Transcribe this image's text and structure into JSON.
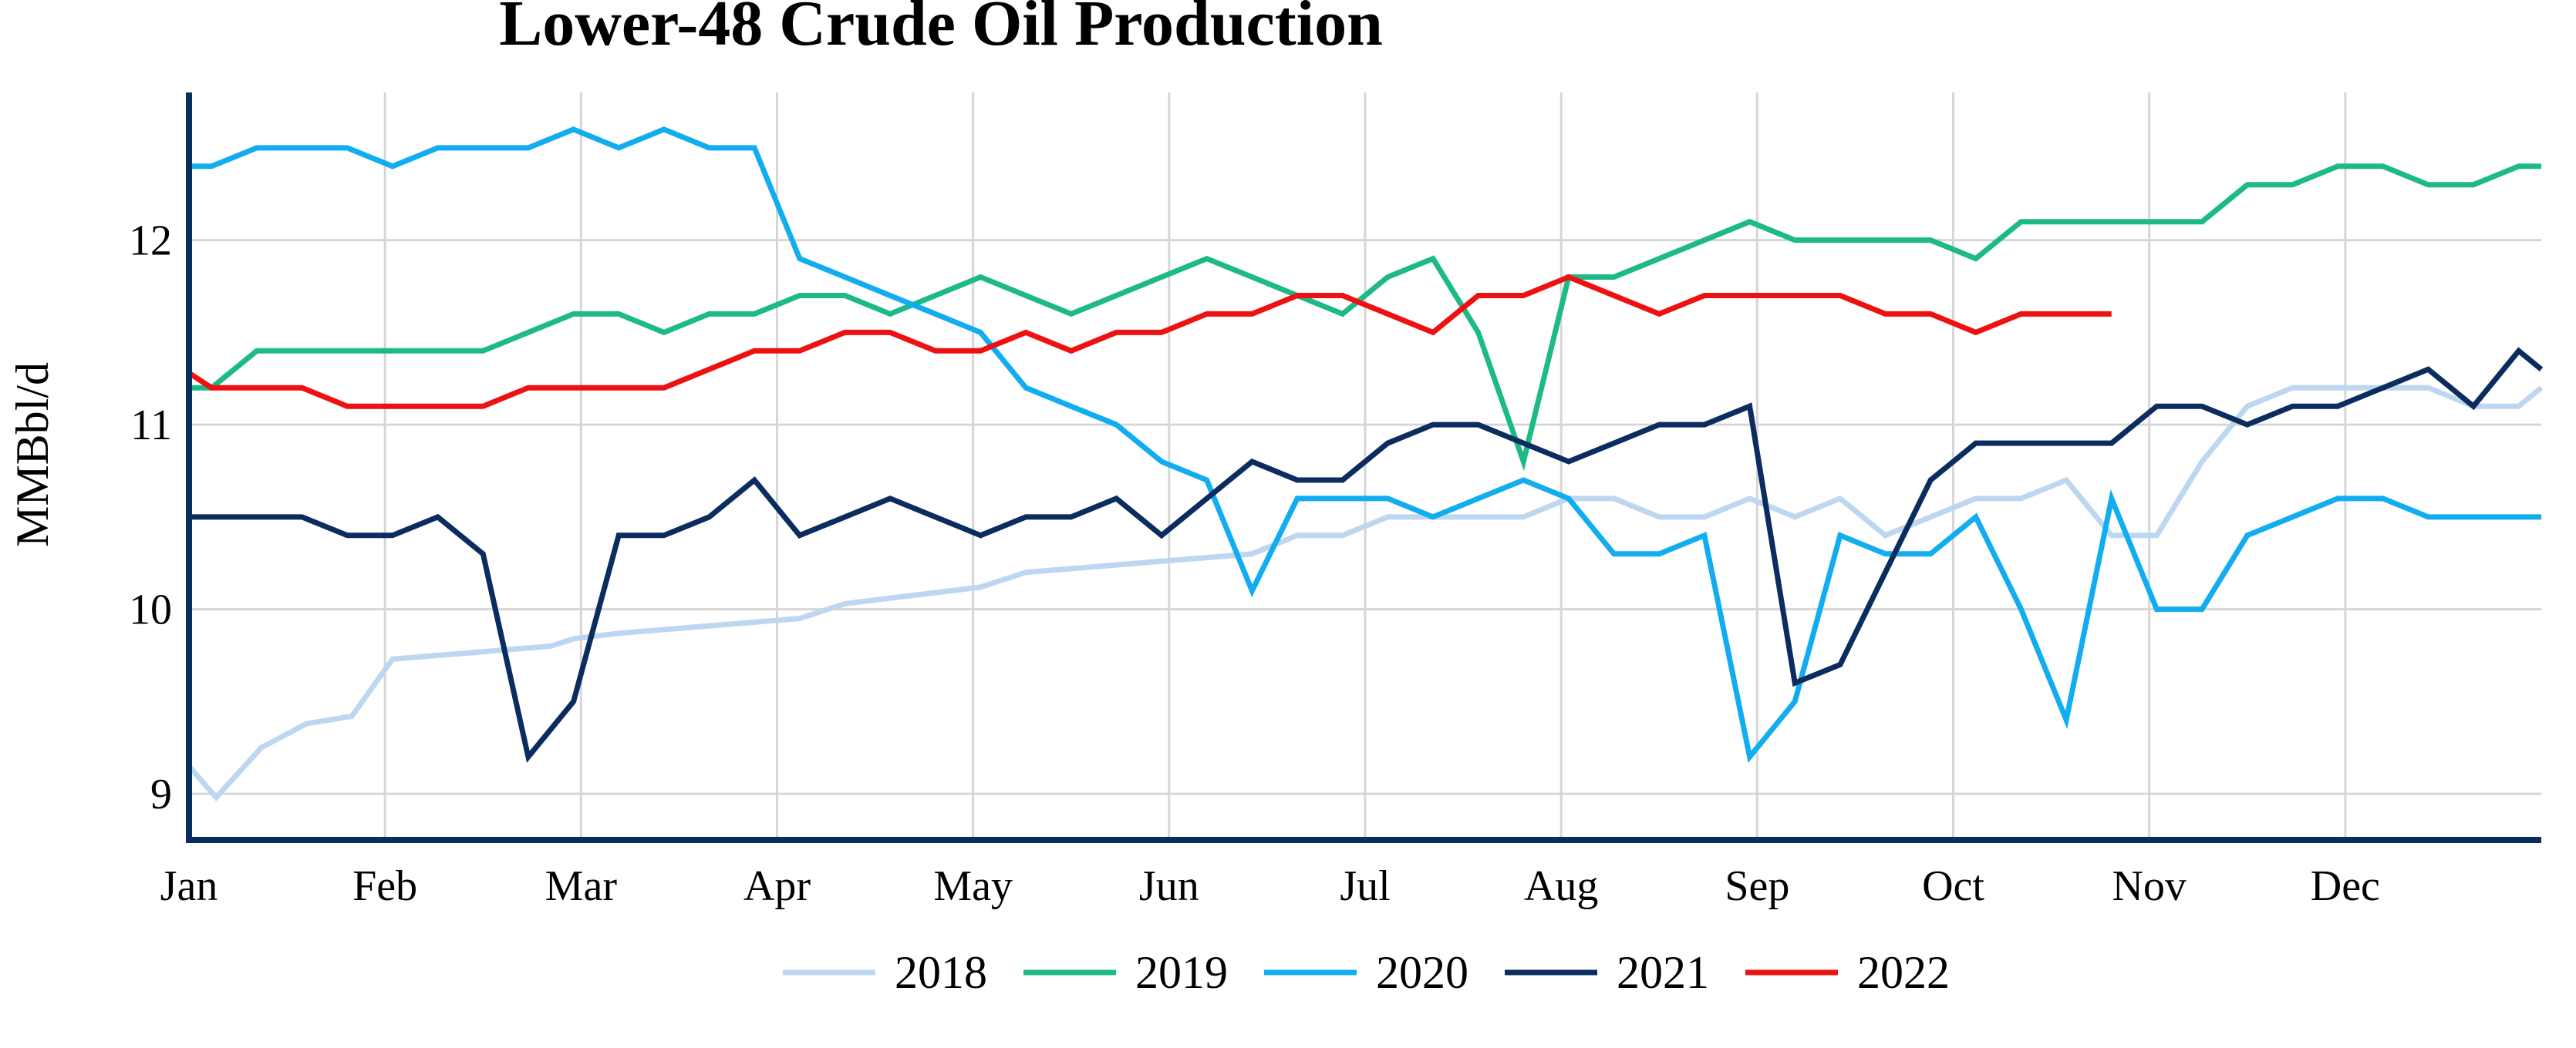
{
  "chart_data": {
    "type": "line",
    "title": "Lower-48 Crude Oil Production",
    "ylabel": "MMBbl/d",
    "xlabel": "",
    "x_ticks": [
      "Jan",
      "Feb",
      "Mar",
      "Apr",
      "May",
      "Jun",
      "Jul",
      "Aug",
      "Sep",
      "Oct",
      "Nov",
      "Dec"
    ],
    "y_ticks": [
      9,
      10,
      11,
      12
    ],
    "xlim": [
      0,
      52
    ],
    "ylim": [
      8.75,
      12.8
    ],
    "grid": true,
    "legend_position": "bottom",
    "x_unit": "week of year",
    "series": [
      {
        "name": "2018",
        "color": "#bdd7f0",
        "x": [
          0,
          0.6,
          1.6,
          2.6,
          3.6,
          4.5,
          5.5,
          6.5,
          7.5,
          8,
          8.5,
          9.5,
          10.5,
          11.5,
          12.5,
          13.5,
          14.5,
          15.5,
          16.5,
          17.5,
          18.5,
          19.5,
          20.5,
          21.5,
          22.5,
          23.5,
          24.5,
          25.5,
          26.5,
          27.5,
          28.5,
          29.5,
          30.5,
          31.5,
          32.5,
          33.5,
          34.5,
          35.5,
          36.5,
          37.5,
          38.5,
          39.5,
          40.5,
          41.5,
          42.5,
          43.5,
          44.5,
          45.5,
          46.5,
          47.5,
          48.5,
          49.5,
          50.5,
          51.5,
          52
        ],
        "values": [
          9.15,
          8.98,
          9.25,
          9.38,
          9.42,
          9.73,
          9.75,
          9.77,
          9.79,
          9.8,
          9.84,
          9.87,
          9.89,
          9.91,
          9.93,
          9.95,
          10.03,
          10.06,
          10.09,
          10.12,
          10.2,
          10.22,
          10.24,
          10.26,
          10.28,
          10.3,
          10.4,
          10.4,
          10.5,
          10.5,
          10.5,
          10.5,
          10.6,
          10.6,
          10.5,
          10.5,
          10.6,
          10.5,
          10.6,
          10.4,
          10.5,
          10.6,
          10.6,
          10.7,
          10.4,
          10.4,
          10.8,
          11.1,
          11.2,
          11.2,
          11.2,
          11.2,
          11.1,
          11.1,
          11.2
        ]
      },
      {
        "name": "2019",
        "color": "#1dba87",
        "x": [
          0,
          0.5,
          1.5,
          2.5,
          3.5,
          4.5,
          5.5,
          6.5,
          7.5,
          8.5,
          9.5,
          10.5,
          11.5,
          12.5,
          13.5,
          14.5,
          15.5,
          16.5,
          17.5,
          18.5,
          19.5,
          20.5,
          21.5,
          22.5,
          23.5,
          24.5,
          25.5,
          26.5,
          27.5,
          28.5,
          29.5,
          30.5,
          31.5,
          32.5,
          33.5,
          34.5,
          35.5,
          36.5,
          37.5,
          38.5,
          39.5,
          40.5,
          41.5,
          42.5,
          43.5,
          44.5,
          45.5,
          46.5,
          47.5,
          48.5,
          49.5,
          50.5,
          51.5,
          52
        ],
        "values": [
          11.2,
          11.2,
          11.4,
          11.4,
          11.4,
          11.4,
          11.4,
          11.4,
          11.5,
          11.6,
          11.6,
          11.5,
          11.6,
          11.6,
          11.7,
          11.7,
          11.6,
          11.7,
          11.8,
          11.7,
          11.6,
          11.7,
          11.8,
          11.9,
          11.8,
          11.7,
          11.6,
          11.8,
          11.9,
          11.5,
          10.8,
          11.8,
          11.8,
          11.9,
          12.0,
          12.1,
          12.0,
          12.0,
          12.0,
          12.0,
          11.9,
          12.1,
          12.1,
          12.1,
          12.1,
          12.1,
          12.3,
          12.3,
          12.4,
          12.4,
          12.3,
          12.3,
          12.4,
          12.4
        ]
      },
      {
        "name": "2020",
        "color": "#12adf0",
        "x": [
          0,
          0.5,
          1.5,
          2.5,
          3.5,
          4.5,
          5.5,
          6.5,
          7.5,
          8.5,
          9.5,
          10.5,
          11.5,
          12.5,
          13.5,
          14.5,
          15.5,
          16.5,
          17.5,
          18.5,
          19.5,
          20.5,
          21.5,
          22.5,
          23.5,
          24.5,
          25.5,
          26.5,
          27.5,
          28.5,
          29.5,
          30.5,
          31.5,
          32.5,
          33.5,
          34.5,
          35.5,
          36.5,
          37.5,
          38.5,
          39.5,
          40.5,
          41.5,
          42.5,
          43.5,
          44.5,
          45.5,
          46.5,
          47.5,
          48.5,
          49.5,
          50.5,
          51.5,
          52
        ],
        "values": [
          12.4,
          12.4,
          12.5,
          12.5,
          12.5,
          12.4,
          12.5,
          12.5,
          12.5,
          12.6,
          12.5,
          12.6,
          12.5,
          12.5,
          11.9,
          11.8,
          11.7,
          11.6,
          11.5,
          11.2,
          11.1,
          11.0,
          10.8,
          10.7,
          10.1,
          10.6,
          10.6,
          10.6,
          10.5,
          10.6,
          10.7,
          10.6,
          10.3,
          10.3,
          10.4,
          9.2,
          9.5,
          10.4,
          10.3,
          10.3,
          10.5,
          10.0,
          9.4,
          10.6,
          10.0,
          10.0,
          10.4,
          10.5,
          10.6,
          10.6,
          10.5,
          10.5,
          10.5,
          10.5
        ]
      },
      {
        "name": "2021",
        "color": "#0a2c5e",
        "x": [
          0,
          0.5,
          1.5,
          2.5,
          3.5,
          4.5,
          5.5,
          6.5,
          7.5,
          8.5,
          9.5,
          10.5,
          11.5,
          12.5,
          13.5,
          14.5,
          15.5,
          16.5,
          17.5,
          18.5,
          19.5,
          20.5,
          21.5,
          22.5,
          23.5,
          24.5,
          25.5,
          26.5,
          27.5,
          28.5,
          29.5,
          30.5,
          31.5,
          32.5,
          33.5,
          34.5,
          35.5,
          36.5,
          37.5,
          38.5,
          39.5,
          40.5,
          41.5,
          42.5,
          43.5,
          44.5,
          45.5,
          46.5,
          47.5,
          48.5,
          49.5,
          50.5,
          51.5,
          52
        ],
        "values": [
          10.5,
          10.5,
          10.5,
          10.5,
          10.4,
          10.4,
          10.5,
          10.3,
          9.2,
          9.5,
          10.4,
          10.4,
          10.5,
          10.7,
          10.4,
          10.5,
          10.6,
          10.5,
          10.4,
          10.5,
          10.5,
          10.6,
          10.4,
          10.6,
          10.8,
          10.7,
          10.7,
          10.9,
          11.0,
          11.0,
          10.9,
          10.8,
          10.9,
          11.0,
          11.0,
          11.1,
          9.6,
          9.7,
          10.2,
          10.7,
          10.9,
          10.9,
          10.9,
          10.9,
          11.1,
          11.1,
          11.0,
          11.1,
          11.1,
          11.2,
          11.3,
          11.1,
          11.4,
          11.3
        ]
      },
      {
        "name": "2022",
        "color": "#ee1111",
        "x": [
          0,
          0.5,
          1.5,
          2.5,
          3.5,
          4.5,
          5.5,
          6.5,
          7.5,
          8.5,
          9.5,
          10.5,
          11.5,
          12.5,
          13.5,
          14.5,
          15.5,
          16.5,
          17.5,
          18.5,
          19.5,
          20.5,
          21.5,
          22.5,
          23.5,
          24.5,
          25.5,
          26.5,
          27.5,
          28.5,
          29.5,
          30.5,
          31.5,
          32.5,
          33.5,
          34.5,
          35.5,
          36.5,
          37.5,
          38.5,
          39.5,
          40.5,
          41.5,
          42.5
        ],
        "values": [
          11.28,
          11.2,
          11.2,
          11.2,
          11.1,
          11.1,
          11.1,
          11.1,
          11.2,
          11.2,
          11.2,
          11.2,
          11.3,
          11.4,
          11.4,
          11.5,
          11.5,
          11.4,
          11.4,
          11.5,
          11.4,
          11.5,
          11.5,
          11.6,
          11.6,
          11.7,
          11.7,
          11.6,
          11.5,
          11.7,
          11.7,
          11.8,
          11.7,
          11.6,
          11.7,
          11.7,
          11.7,
          11.7,
          11.6,
          11.6,
          11.5,
          11.6,
          11.6,
          11.6
        ]
      }
    ]
  }
}
